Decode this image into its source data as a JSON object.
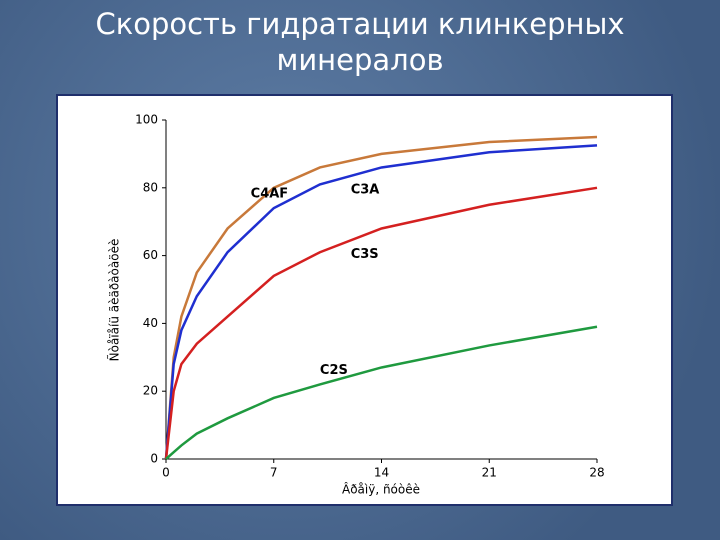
{
  "chart_data": {
    "type": "line",
    "title": "Скорость гидратации клинкерных минералов",
    "x_label": "Âðåìÿ, ñóòêè",
    "y_label": "Ñòåïåíü ãèäðàòàöèè",
    "x": [
      0,
      0.5,
      1,
      2,
      4,
      7,
      10,
      14,
      21,
      28
    ],
    "series": [
      {
        "name": "C4AF",
        "color": "#c8793a",
        "values": [
          0,
          30,
          42,
          55,
          68,
          80,
          86,
          90,
          93.5,
          95
        ]
      },
      {
        "name": "C3A",
        "color": "#1f2fd0",
        "values": [
          0,
          28,
          38,
          48,
          61,
          74,
          81,
          86,
          90.5,
          92.5
        ]
      },
      {
        "name": "C3S",
        "color": "#d42020",
        "values": [
          0,
          20,
          28,
          34,
          42,
          54,
          61,
          68,
          75,
          80
        ]
      },
      {
        "name": "C2S",
        "color": "#1f9a3f",
        "values": [
          0,
          2,
          4,
          7.5,
          12,
          18,
          22,
          27,
          33.5,
          39
        ]
      }
    ],
    "xlim": [
      0,
      28
    ],
    "xticks": [
      0,
      7,
      14,
      21,
      28
    ],
    "ylim": [
      0,
      100
    ],
    "yticks": [
      0,
      20,
      40,
      60,
      80,
      100
    ]
  }
}
